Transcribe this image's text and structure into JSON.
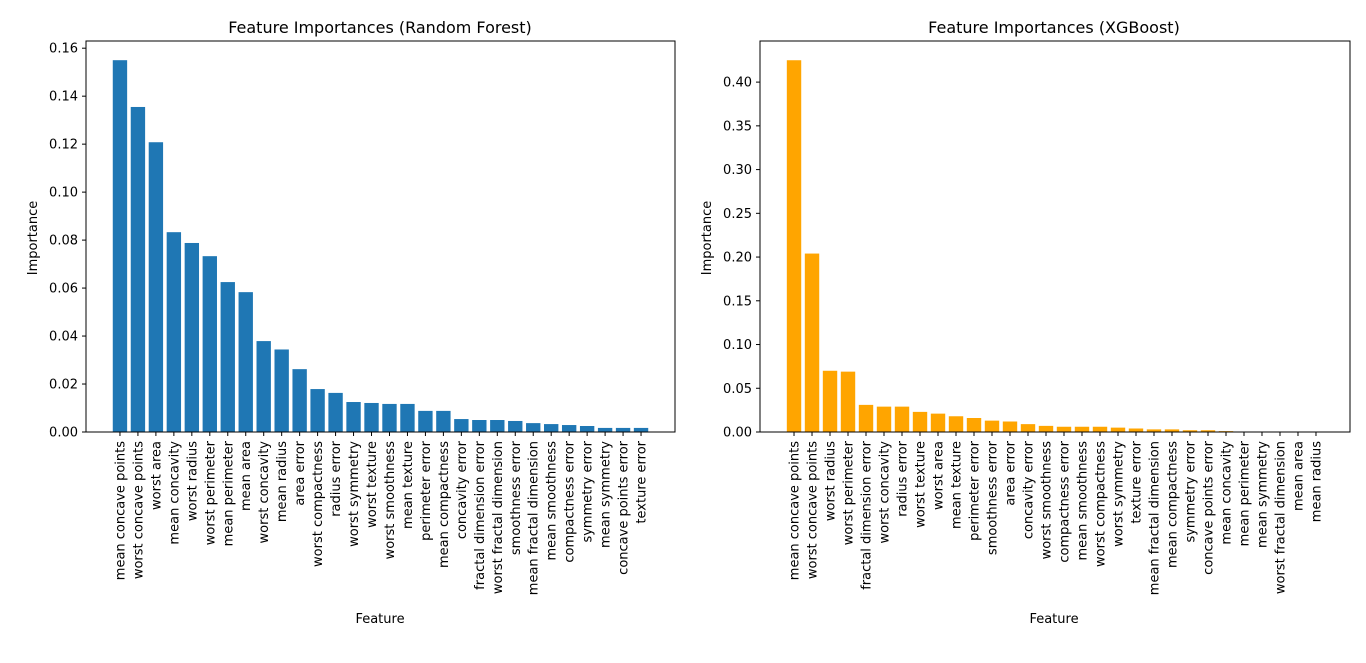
{
  "chart_data": [
    {
      "type": "bar",
      "title": "Feature Importances (Random Forest)",
      "xlabel": "Feature",
      "ylabel": "Importance",
      "ylim": [
        0,
        0.163
      ],
      "yticks": [
        "0.00",
        "0.02",
        "0.04",
        "0.06",
        "0.08",
        "0.10",
        "0.12",
        "0.14",
        "0.16"
      ],
      "color": "#1f77b4",
      "categories": [
        "mean concave points",
        "worst concave points",
        "worst area",
        "mean concavity",
        "worst radius",
        "worst perimeter",
        "mean perimeter",
        "mean area",
        "worst concavity",
        "mean radius",
        "area error",
        "worst compactness",
        "radius error",
        "worst symmetry",
        "worst texture",
        "worst smoothness",
        "mean texture",
        "perimeter error",
        "mean compactness",
        "concavity error",
        "fractal dimension error",
        "worst fractal dimension",
        "smoothness error",
        "mean fractal dimension",
        "mean smoothness",
        "compactness error",
        "symmetry error",
        "mean symmetry",
        "concave points error",
        "texture error"
      ],
      "values": [
        0.155,
        0.1355,
        0.1208,
        0.0833,
        0.0788,
        0.0733,
        0.0625,
        0.0583,
        0.0379,
        0.0344,
        0.0262,
        0.0179,
        0.0163,
        0.0125,
        0.0121,
        0.0117,
        0.0117,
        0.0088,
        0.0088,
        0.0054,
        0.005,
        0.005,
        0.0046,
        0.0037,
        0.0033,
        0.0029,
        0.0025,
        0.0017,
        0.0017,
        0.0017
      ]
    },
    {
      "type": "bar",
      "title": "Feature Importances (XGBoost)",
      "xlabel": "Feature",
      "ylabel": "Importance",
      "ylim": [
        0,
        0.447
      ],
      "yticks": [
        "0.00",
        "0.05",
        "0.10",
        "0.15",
        "0.20",
        "0.25",
        "0.30",
        "0.35",
        "0.40"
      ],
      "color": "#ffa500",
      "categories": [
        "mean concave points",
        "worst concave points",
        "worst radius",
        "worst perimeter",
        "fractal dimension error",
        "worst concavity",
        "radius error",
        "worst texture",
        "worst area",
        "mean texture",
        "perimeter error",
        "smoothness error",
        "area error",
        "concavity error",
        "worst smoothness",
        "compactness error",
        "mean smoothness",
        "worst compactness",
        "worst symmetry",
        "texture error",
        "mean fractal dimension",
        "mean compactness",
        "symmetry error",
        "concave points error",
        "mean concavity",
        "mean perimeter",
        "mean symmetry",
        "worst fractal dimension",
        "mean area",
        "mean radius"
      ],
      "values": [
        0.425,
        0.204,
        0.07,
        0.069,
        0.031,
        0.029,
        0.029,
        0.023,
        0.021,
        0.018,
        0.016,
        0.013,
        0.012,
        0.009,
        0.007,
        0.006,
        0.006,
        0.006,
        0.005,
        0.004,
        0.003,
        0.003,
        0.002,
        0.002,
        0.001,
        0.0,
        0.0,
        0.0,
        0.0,
        0.0
      ]
    }
  ]
}
